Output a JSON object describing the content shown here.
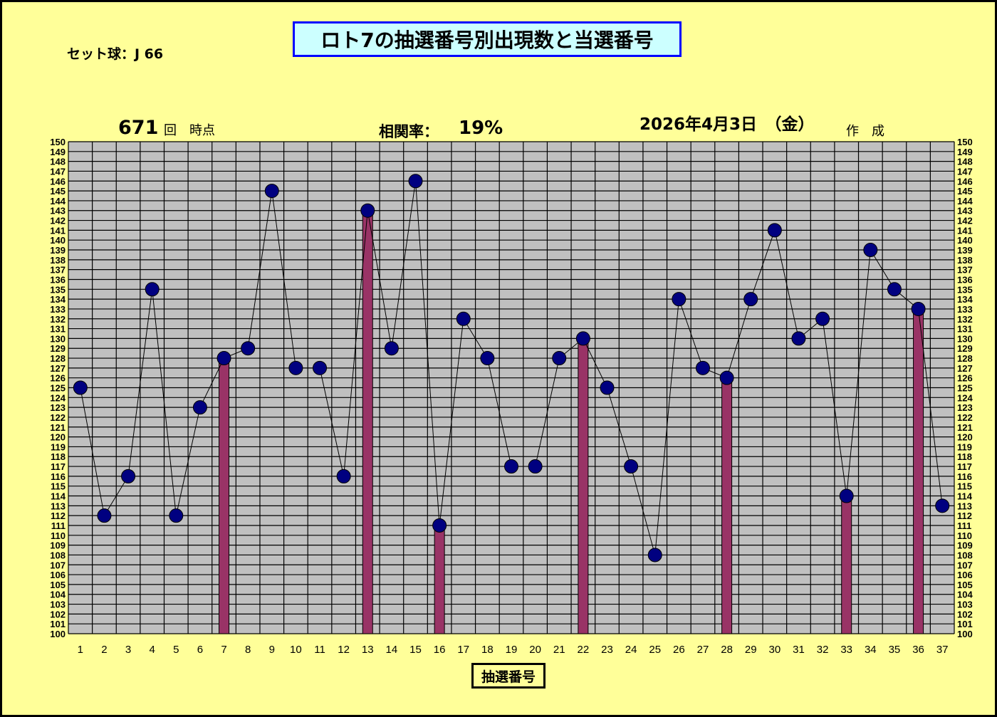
{
  "header": {
    "set_ball": "セット球：J 66",
    "draw_count": "671",
    "draw_count_suffix1": "回",
    "draw_count_suffix2": "時点",
    "correlation_label": "相関率：",
    "correlation_value": "19%",
    "date": "2026年4月3日　（金）",
    "created": "作　成"
  },
  "chart_data": {
    "type": "line+bar",
    "title": "ロト7の抽選番号別出現数と当選番号",
    "xlabel": "抽選番号",
    "ylabel": "",
    "ylim": [
      100,
      150
    ],
    "grid": true,
    "categories": [
      1,
      2,
      3,
      4,
      5,
      6,
      7,
      8,
      9,
      10,
      11,
      12,
      13,
      14,
      15,
      16,
      17,
      18,
      19,
      20,
      21,
      22,
      23,
      24,
      25,
      26,
      27,
      28,
      29,
      30,
      31,
      32,
      33,
      34,
      35,
      36,
      37
    ],
    "series": [
      {
        "type": "line",
        "values": [
          125,
          112,
          116,
          135,
          112,
          123,
          128,
          129,
          145,
          127,
          127,
          116,
          143,
          129,
          146,
          111,
          132,
          128,
          117,
          117,
          128,
          130,
          125,
          117,
          108,
          134,
          127,
          126,
          134,
          141,
          130,
          132,
          114,
          139,
          135,
          133,
          113
        ]
      },
      {
        "type": "bar",
        "highlighted_numbers": [
          7,
          13,
          16,
          22,
          28,
          33,
          36
        ]
      }
    ],
    "colors": {
      "background": "#ffff99",
      "plot": "#c0c0c0",
      "marker": "#000080",
      "bar": "#993366",
      "title_bg": "#ccffff",
      "title_border": "#0000ff"
    }
  }
}
